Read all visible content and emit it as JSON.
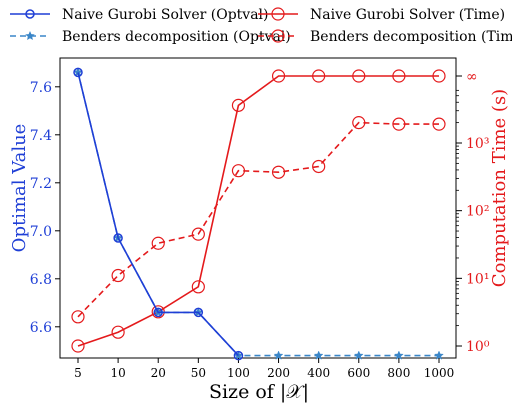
{
  "chart_data": {
    "type": "line",
    "categories": [
      "5",
      "10",
      "20",
      "50",
      "100",
      "200",
      "400",
      "600",
      "800",
      "1000"
    ],
    "xlabel": "Size of |𝒳|",
    "y_left": {
      "label": "Optimal Value",
      "ylim": [
        6.47,
        7.72
      ],
      "ticks": [
        "6.6",
        "6.8",
        "7.0",
        "7.2",
        "7.4",
        "7.6"
      ],
      "color": "#1f3fd6"
    },
    "y_right": {
      "label": "Computation Time (s)",
      "scale": "log",
      "ticks": [
        "10⁰",
        "10¹",
        "10²",
        "10³",
        "∞"
      ],
      "color": "#e41a1c"
    },
    "legend": {
      "placement": "top",
      "entries": [
        "Naive Gurobi Solver (Optval)",
        "Naive Gurobi Solver (Time)",
        "Benders decomposition (Optval)",
        "Benders decomposition (Time)"
      ]
    },
    "series": [
      {
        "name": "Naive Gurobi Solver (Optval)",
        "axis": "left",
        "style": "solid",
        "marker": "circle",
        "color": "#1f3fd6",
        "values": [
          7.66,
          6.97,
          6.66,
          6.66,
          6.48,
          null,
          null,
          null,
          null,
          null
        ]
      },
      {
        "name": "Benders decomposition (Optval)",
        "axis": "left",
        "style": "dashed",
        "marker": "star",
        "color": "#3a86c8",
        "values": [
          7.66,
          6.97,
          6.66,
          6.66,
          6.48,
          6.48,
          6.48,
          6.48,
          6.48,
          6.48
        ]
      },
      {
        "name": "Naive Gurobi Solver (Time)",
        "axis": "right",
        "style": "solid",
        "marker": "open-circle",
        "color": "#e41a1c",
        "values": [
          1.0,
          1.6,
          3.2,
          7.5,
          3600,
          "inf",
          "inf",
          "inf",
          "inf",
          "inf"
        ]
      },
      {
        "name": "Benders decomposition (Time)",
        "axis": "right",
        "style": "dashed",
        "marker": "open-circle",
        "color": "#e41a1c",
        "values": [
          2.7,
          11,
          33,
          45,
          390,
          370,
          450,
          2000,
          1900,
          1900
        ]
      }
    ]
  }
}
